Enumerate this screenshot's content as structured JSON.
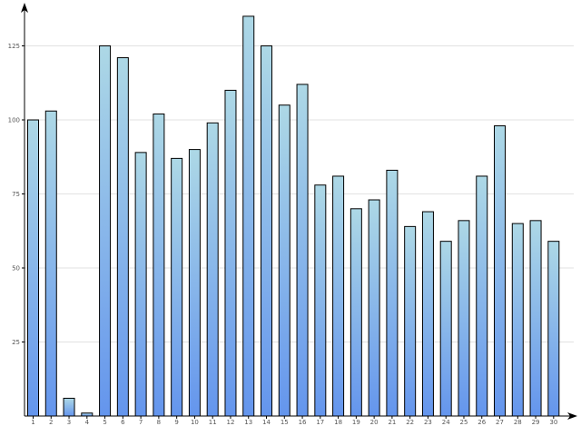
{
  "chart_data": {
    "type": "bar",
    "categories": [
      "1",
      "2",
      "3",
      "4",
      "5",
      "6",
      "7",
      "8",
      "9",
      "10",
      "11",
      "12",
      "13",
      "14",
      "15",
      "16",
      "17",
      "18",
      "19",
      "20",
      "21",
      "22",
      "23",
      "24",
      "25",
      "26",
      "27",
      "28",
      "29",
      "30"
    ],
    "values": [
      100,
      103,
      6,
      1,
      125,
      121,
      89,
      102,
      87,
      90,
      99,
      110,
      135,
      125,
      105,
      112,
      78,
      81,
      70,
      73,
      83,
      64,
      69,
      59,
      66,
      81,
      98,
      65,
      66,
      59
    ],
    "yticks": [
      "25",
      "50",
      "75",
      "100",
      "125"
    ],
    "ylim": [
      0,
      135
    ],
    "grid": true,
    "colors": {
      "bar_top": "#add8e6",
      "bar_bottom": "#6495ed",
      "grid": "#e2e2e2"
    }
  }
}
